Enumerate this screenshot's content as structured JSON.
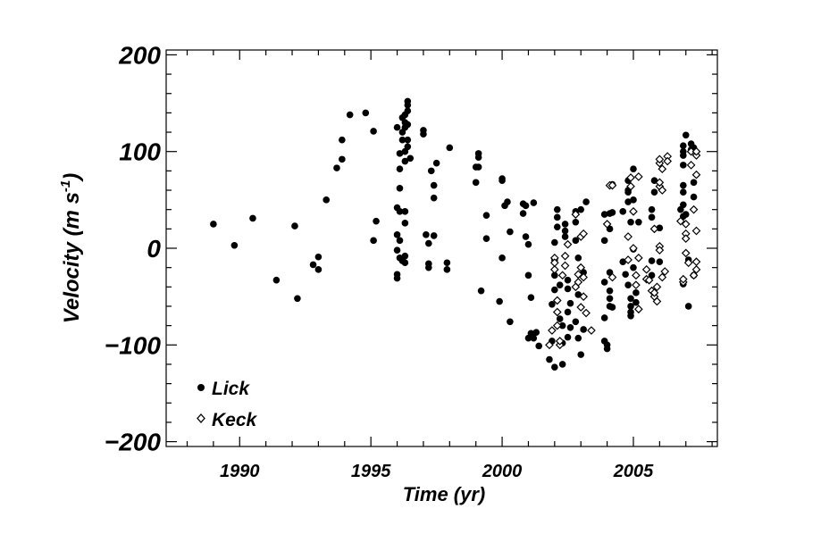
{
  "chart_data": {
    "type": "scatter",
    "title": "",
    "xlabel": "Time (yr)",
    "ylabel_main": "Velocity (m s",
    "ylabel_sup": "-1",
    "ylabel_close": ")",
    "xlim": [
      1987.2,
      2008.2
    ],
    "ylim": [
      -205,
      205
    ],
    "x_ticks": [
      1990,
      1995,
      2000,
      2005
    ],
    "x_tick_labels": [
      "1990",
      "1995",
      "2000",
      "2005"
    ],
    "y_ticks": [
      200,
      100,
      0,
      -100,
      -200
    ],
    "y_tick_labels": [
      "200",
      "100",
      "0",
      "−100",
      "−200"
    ],
    "grid": false,
    "legend_position": "bottom-left",
    "series": [
      {
        "name": "Lick",
        "marker": "filled-circle",
        "color": "#000000",
        "points": [
          [
            1989.0,
            25
          ],
          [
            1989.8,
            3
          ],
          [
            1990.5,
            31
          ],
          [
            1991.4,
            -33
          ],
          [
            1992.1,
            23
          ],
          [
            1992.2,
            -52
          ],
          [
            1992.8,
            -17
          ],
          [
            1993.0,
            -9
          ],
          [
            1993.0,
            -22
          ],
          [
            1993.3,
            50
          ],
          [
            1993.7,
            83
          ],
          [
            1993.9,
            92
          ],
          [
            1993.9,
            112
          ],
          [
            1994.2,
            138
          ],
          [
            1994.8,
            140
          ],
          [
            1995.1,
            121
          ],
          [
            1995.2,
            28
          ],
          [
            1995.1,
            8
          ],
          [
            1996.0,
            125
          ],
          [
            1996.1,
            98
          ],
          [
            1996.1,
            82
          ],
          [
            1996.1,
            62
          ],
          [
            1996.0,
            42
          ],
          [
            1996.1,
            38
          ],
          [
            1996.0,
            14
          ],
          [
            1996.1,
            8
          ],
          [
            1996.0,
            -2
          ],
          [
            1996.1,
            -10
          ],
          [
            1996.0,
            -27
          ],
          [
            1996.0,
            -31
          ],
          [
            1996.2,
            112
          ],
          [
            1996.2,
            135
          ],
          [
            1996.3,
            138
          ],
          [
            1996.3,
            130
          ],
          [
            1996.3,
            125
          ],
          [
            1996.2,
            120
          ],
          [
            1996.4,
            105
          ],
          [
            1996.3,
            100
          ],
          [
            1996.3,
            90
          ],
          [
            1996.3,
            38
          ],
          [
            1996.3,
            26
          ],
          [
            1996.3,
            -8
          ],
          [
            1996.2,
            -13
          ],
          [
            1996.3,
            -15
          ],
          [
            1996.4,
            148
          ],
          [
            1996.4,
            152
          ],
          [
            1996.4,
            142
          ],
          [
            1996.5,
            93
          ],
          [
            1996.4,
            112
          ],
          [
            1996.4,
            128
          ],
          [
            1997.0,
            118
          ],
          [
            1997.0,
            122
          ],
          [
            1997.1,
            14
          ],
          [
            1997.2,
            5
          ],
          [
            1997.2,
            -16
          ],
          [
            1997.2,
            -20
          ],
          [
            1997.4,
            13
          ],
          [
            1997.4,
            52
          ],
          [
            1997.4,
            65
          ],
          [
            1997.5,
            88
          ],
          [
            1997.3,
            80
          ],
          [
            1998.0,
            104
          ],
          [
            1997.9,
            -15
          ],
          [
            1997.9,
            -22
          ],
          [
            1999.0,
            84
          ],
          [
            1999.0,
            68
          ],
          [
            1999.1,
            94
          ],
          [
            1999.1,
            98
          ],
          [
            1999.1,
            84
          ],
          [
            1999.4,
            34
          ],
          [
            1999.4,
            10
          ],
          [
            1999.2,
            -44
          ],
          [
            1999.9,
            -55
          ],
          [
            2000.0,
            70
          ],
          [
            2000.0,
            72
          ],
          [
            2000.1,
            44
          ],
          [
            2000.2,
            48
          ],
          [
            2000.3,
            17
          ],
          [
            2000.0,
            -10
          ],
          [
            2000.3,
            -76
          ],
          [
            2000.8,
            46
          ],
          [
            2000.8,
            36
          ],
          [
            2000.9,
            44
          ],
          [
            2000.9,
            12
          ],
          [
            2001.0,
            4
          ],
          [
            2001.2,
            47
          ],
          [
            2001.0,
            -28
          ],
          [
            2001.1,
            -51
          ],
          [
            2001.1,
            -88
          ],
          [
            2001.0,
            -93
          ],
          [
            2001.2,
            -93
          ],
          [
            2001.3,
            -87
          ],
          [
            2001.4,
            -101
          ],
          [
            2001.8,
            -115
          ],
          [
            2002.0,
            -123
          ],
          [
            2001.9,
            -96
          ],
          [
            2001.9,
            -58
          ],
          [
            2002.0,
            -43
          ],
          [
            2002.0,
            -28
          ],
          [
            2002.0,
            -12
          ],
          [
            2002.0,
            6
          ],
          [
            2002.1,
            22
          ],
          [
            2002.1,
            32
          ],
          [
            2002.1,
            40
          ],
          [
            2002.2,
            -38
          ],
          [
            2002.2,
            -73
          ],
          [
            2002.3,
            -80
          ],
          [
            2002.3,
            -98
          ],
          [
            2002.3,
            -120
          ],
          [
            2002.4,
            12
          ],
          [
            2002.4,
            18
          ],
          [
            2002.4,
            25
          ],
          [
            2002.5,
            -33
          ],
          [
            2002.5,
            -42
          ],
          [
            2002.5,
            -66
          ],
          [
            2002.5,
            -92
          ],
          [
            2002.6,
            -57
          ],
          [
            2002.6,
            -82
          ],
          [
            2002.8,
            27
          ],
          [
            2002.8,
            38
          ],
          [
            2002.8,
            8
          ],
          [
            2002.9,
            -10
          ],
          [
            2002.9,
            -48
          ],
          [
            2002.8,
            -76
          ],
          [
            2002.9,
            -93
          ],
          [
            2003.0,
            -110
          ],
          [
            2003.0,
            40
          ],
          [
            2003.1,
            -25
          ],
          [
            2003.2,
            48
          ],
          [
            2003.1,
            -84
          ],
          [
            2003.9,
            35
          ],
          [
            2003.9,
            8
          ],
          [
            2003.9,
            -35
          ],
          [
            2003.9,
            -72
          ],
          [
            2003.9,
            -96
          ],
          [
            2004.0,
            -104
          ],
          [
            2004.0,
            -100
          ],
          [
            2004.1,
            -60
          ],
          [
            2004.1,
            -52
          ],
          [
            2004.1,
            -44
          ],
          [
            2004.1,
            -25
          ],
          [
            2004.1,
            20
          ],
          [
            2004.1,
            36
          ],
          [
            2004.2,
            37
          ],
          [
            2004.2,
            66
          ],
          [
            2004.2,
            -61
          ],
          [
            2004.6,
            38
          ],
          [
            2004.6,
            -14
          ],
          [
            2004.7,
            -27
          ],
          [
            2004.8,
            48
          ],
          [
            2004.8,
            58
          ],
          [
            2004.8,
            70
          ],
          [
            2004.8,
            60
          ],
          [
            2004.8,
            -38
          ],
          [
            2004.9,
            -66
          ],
          [
            2004.9,
            -70
          ],
          [
            2004.9,
            -60
          ],
          [
            2004.9,
            -52
          ],
          [
            2004.9,
            27
          ],
          [
            2005.0,
            82
          ],
          [
            2005.0,
            50
          ],
          [
            2005.0,
            -1
          ],
          [
            2005.0,
            -20
          ],
          [
            2005.1,
            -46
          ],
          [
            2005.1,
            -56
          ],
          [
            2005.2,
            27
          ],
          [
            2005.7,
            40
          ],
          [
            2005.7,
            32
          ],
          [
            2005.7,
            -13
          ],
          [
            2005.7,
            -28
          ],
          [
            2005.8,
            58
          ],
          [
            2005.8,
            70
          ],
          [
            2006.0,
            21
          ],
          [
            2006.0,
            -14
          ],
          [
            2006.8,
            40
          ],
          [
            2006.9,
            58
          ],
          [
            2006.9,
            86
          ],
          [
            2006.9,
            96
          ],
          [
            2006.9,
            100
          ],
          [
            2006.9,
            106
          ],
          [
            2006.9,
            65
          ],
          [
            2006.9,
            45
          ],
          [
            2006.9,
            33
          ],
          [
            2006.9,
            -37
          ],
          [
            2007.0,
            117
          ],
          [
            2007.0,
            35
          ],
          [
            2007.1,
            -60
          ],
          [
            2007.2,
            108
          ],
          [
            2007.2,
            102
          ],
          [
            2007.3,
            104
          ],
          [
            2007.3,
            68
          ],
          [
            2007.3,
            53
          ],
          [
            2007.1,
            -12
          ],
          [
            2007.3,
            -28
          ]
        ]
      },
      {
        "name": "Keck",
        "marker": "open-diamond",
        "color": "#000000",
        "points": [
          [
            2001.8,
            -100
          ],
          [
            2001.9,
            -85
          ],
          [
            2002.0,
            -22
          ],
          [
            2002.0,
            -10
          ],
          [
            2002.0,
            -15
          ],
          [
            2002.1,
            -54
          ],
          [
            2002.1,
            -66
          ],
          [
            2002.1,
            -80
          ],
          [
            2002.2,
            -100
          ],
          [
            2002.2,
            -96
          ],
          [
            2002.3,
            -28
          ],
          [
            2002.4,
            -8
          ],
          [
            2002.4,
            -18
          ],
          [
            2002.5,
            4
          ],
          [
            2002.8,
            35
          ],
          [
            2002.8,
            -40
          ],
          [
            2002.9,
            -27
          ],
          [
            2002.9,
            -35
          ],
          [
            2003.0,
            -20
          ],
          [
            2003.0,
            12
          ],
          [
            2003.0,
            -61
          ],
          [
            2003.1,
            -30
          ],
          [
            2003.1,
            -50
          ],
          [
            2003.2,
            -67
          ],
          [
            2003.4,
            -85
          ],
          [
            2003.1,
            15
          ],
          [
            2004.0,
            25
          ],
          [
            2004.1,
            65
          ],
          [
            2004.2,
            65
          ],
          [
            2004.2,
            -30
          ],
          [
            2004.8,
            12
          ],
          [
            2004.8,
            -12
          ],
          [
            2004.9,
            73
          ],
          [
            2004.9,
            64
          ],
          [
            2005.0,
            38
          ],
          [
            2005.0,
            0
          ],
          [
            2005.1,
            -28
          ],
          [
            2005.1,
            -38
          ],
          [
            2005.2,
            -63
          ],
          [
            2005.2,
            -10
          ],
          [
            2005.2,
            74
          ],
          [
            2005.5,
            -22
          ],
          [
            2005.5,
            -32
          ],
          [
            2005.6,
            -33
          ],
          [
            2005.7,
            -44
          ],
          [
            2005.8,
            -50
          ],
          [
            2005.8,
            -46
          ],
          [
            2005.8,
            20
          ],
          [
            2005.9,
            -40
          ],
          [
            2005.9,
            -55
          ],
          [
            2006.0,
            2
          ],
          [
            2006.0,
            -2
          ],
          [
            2006.0,
            64
          ],
          [
            2006.0,
            68
          ],
          [
            2006.0,
            88
          ],
          [
            2006.0,
            92
          ],
          [
            2006.1,
            82
          ],
          [
            2006.1,
            60
          ],
          [
            2006.1,
            -30
          ],
          [
            2006.2,
            -24
          ],
          [
            2006.3,
            95
          ],
          [
            2006.3,
            90
          ],
          [
            2006.8,
            28
          ],
          [
            2006.9,
            -35
          ],
          [
            2006.9,
            -32
          ],
          [
            2007.0,
            25
          ],
          [
            2007.0,
            15
          ],
          [
            2007.0,
            10
          ],
          [
            2007.0,
            -5
          ],
          [
            2007.1,
            -15
          ],
          [
            2007.2,
            100
          ],
          [
            2007.2,
            86
          ],
          [
            2007.3,
            40
          ],
          [
            2007.3,
            -28
          ],
          [
            2007.4,
            18
          ],
          [
            2007.4,
            76
          ],
          [
            2007.4,
            96
          ],
          [
            2007.4,
            100
          ],
          [
            2007.4,
            -14
          ],
          [
            2007.4,
            -22
          ]
        ]
      }
    ]
  }
}
